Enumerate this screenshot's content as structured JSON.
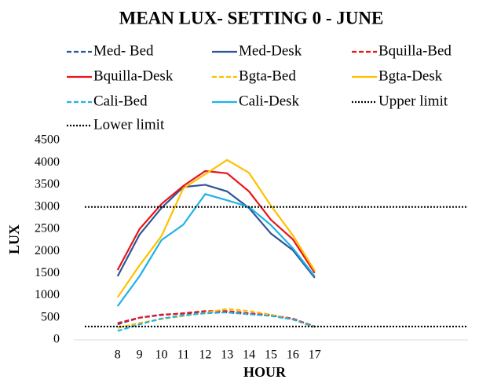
{
  "chart_data": {
    "type": "line",
    "title": "MEAN LUX- SETTING 0 - JUNE",
    "xlabel": "HOUR",
    "ylabel": "LUX",
    "x": [
      8,
      9,
      10,
      11,
      12,
      13,
      14,
      15,
      16,
      17
    ],
    "xlim": [
      6,
      24
    ],
    "xticks": [
      8,
      9,
      10,
      11,
      12,
      13,
      14,
      15,
      16,
      17
    ],
    "ylim": [
      0,
      4500
    ],
    "yticks": [
      0,
      500,
      1000,
      1500,
      2000,
      2500,
      3000,
      3500,
      4000,
      4500
    ],
    "grid": false,
    "legend": "top",
    "series": [
      {
        "name": "Med- Bed",
        "color": "#2e5597",
        "dash": "dashed",
        "values": [
          350,
          500,
          570,
          590,
          630,
          620,
          580,
          550,
          470,
          300
        ]
      },
      {
        "name": "Med-Desk",
        "color": "#2e5597",
        "dash": "solid",
        "values": [
          1435,
          2375,
          2975,
          3450,
          3500,
          3350,
          2975,
          2400,
          2025,
          1400
        ]
      },
      {
        "name": "Bquilla-Bed",
        "color": "#e8141b",
        "dash": "dashed",
        "values": [
          380,
          500,
          560,
          600,
          650,
          650,
          600,
          560,
          480,
          300
        ]
      },
      {
        "name": "Bquilla-Desk",
        "color": "#e8141b",
        "dash": "solid",
        "values": [
          1575,
          2500,
          3065,
          3475,
          3810,
          3760,
          3350,
          2710,
          2270,
          1510
        ]
      },
      {
        "name": "Bgta-Bed",
        "color": "#ffc000",
        "dash": "dashed",
        "values": [
          270,
          380,
          470,
          540,
          610,
          700,
          650,
          570,
          460,
          280
        ]
      },
      {
        "name": "Bgta-Desk",
        "color": "#ffc000",
        "dash": "solid",
        "values": [
          960,
          1680,
          2340,
          3420,
          3740,
          4060,
          3770,
          3030,
          2360,
          1560
        ]
      },
      {
        "name": "Cali-Bed",
        "color": "#1fb2e8",
        "dash": "dashed",
        "values": [
          200,
          350,
          480,
          550,
          600,
          620,
          580,
          540,
          460,
          300
        ]
      },
      {
        "name": "Cali-Desk",
        "color": "#1fb2e8",
        "dash": "solid",
        "values": [
          760,
          1435,
          2250,
          2600,
          3290,
          3150,
          3000,
          2590,
          2070,
          1435
        ]
      },
      {
        "name": "Upper limit",
        "color": "#000000",
        "dash": "dotted",
        "x": [
          6.5,
          24
        ],
        "values": [
          3000,
          3000
        ]
      },
      {
        "name": "Lower limit",
        "color": "#000000",
        "dash": "dotted",
        "x": [
          6.5,
          24
        ],
        "values": [
          300,
          300
        ]
      }
    ]
  }
}
